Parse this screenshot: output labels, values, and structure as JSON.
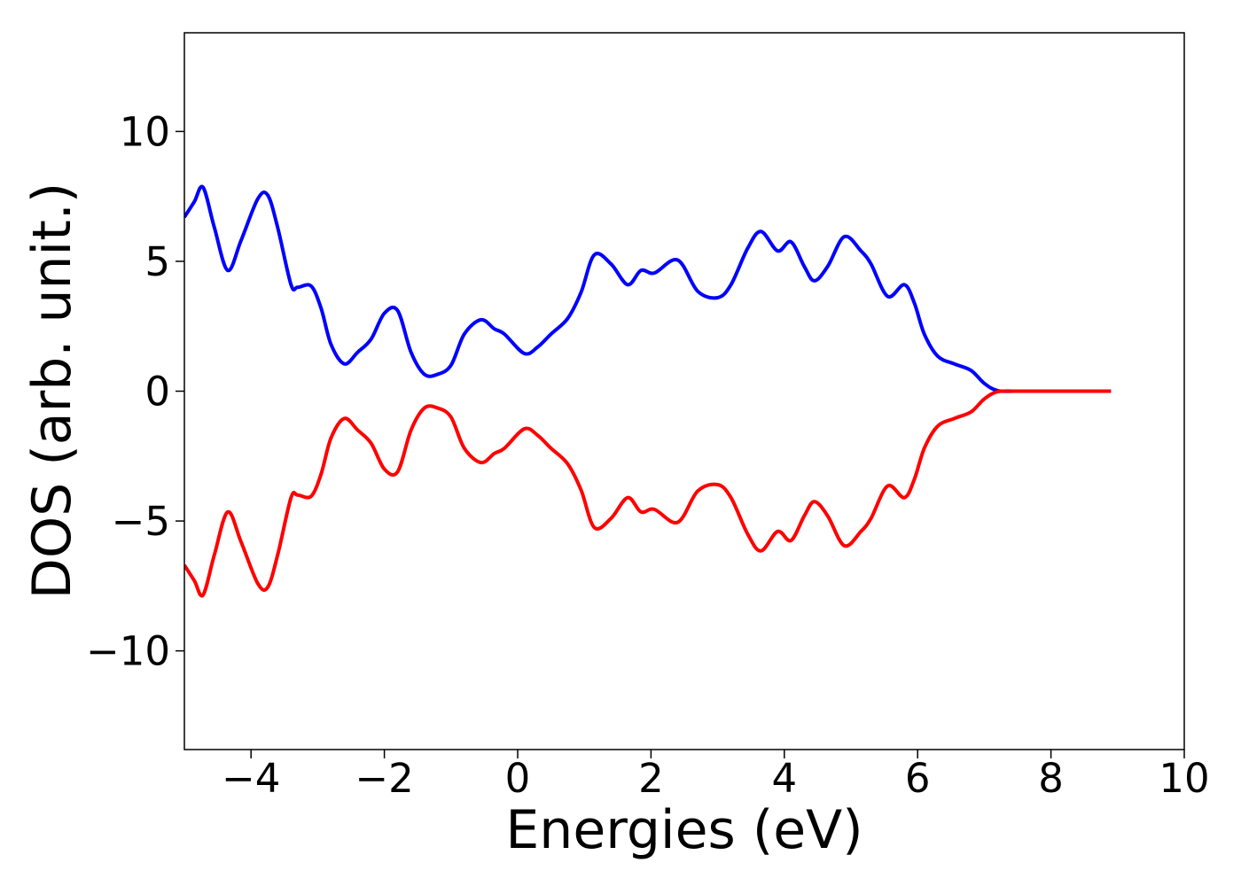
{
  "chart_data": {
    "type": "line",
    "title": "",
    "xlabel": "Energies (eV)",
    "ylabel": "DOS (arb. unit.)",
    "xlim": [
      -5,
      10
    ],
    "ylim": [
      -13.8,
      13.8
    ],
    "grid": false,
    "legend": "none",
    "x_ticks": [
      -4,
      -2,
      0,
      2,
      4,
      6,
      8,
      10
    ],
    "x_tick_labels": [
      "−4",
      "−2",
      "0",
      "2",
      "4",
      "6",
      "8",
      "10"
    ],
    "y_ticks": [
      10,
      5,
      0,
      -5,
      -10
    ],
    "y_tick_labels": [
      "10",
      "5",
      "0",
      "−5",
      "−10"
    ],
    "series": [
      {
        "color": "#0000ff",
        "x": [
          -5.0,
          -4.85,
          -4.72,
          -4.55,
          -4.35,
          -4.15,
          -3.9,
          -3.75,
          -3.6,
          -3.4,
          -3.3,
          -3.1,
          -2.95,
          -2.8,
          -2.6,
          -2.4,
          -2.2,
          -2.0,
          -1.8,
          -1.6,
          -1.4,
          -1.2,
          -1.0,
          -0.8,
          -0.55,
          -0.35,
          -0.2,
          0.1,
          0.3,
          0.5,
          0.75,
          0.95,
          1.15,
          1.4,
          1.65,
          1.85,
          2.05,
          2.4,
          2.7,
          3.0,
          3.2,
          3.45,
          3.65,
          3.9,
          4.1,
          4.3,
          4.45,
          4.65,
          4.9,
          5.15,
          5.3,
          5.55,
          5.8,
          5.95,
          6.1,
          6.3,
          6.55,
          6.8,
          7.0,
          7.2,
          7.5,
          8.0,
          8.9
        ],
        "y": [
          6.7,
          7.3,
          7.85,
          6.3,
          4.65,
          5.8,
          7.4,
          7.55,
          6.3,
          4.1,
          4.0,
          4.05,
          3.2,
          1.8,
          1.05,
          1.5,
          2.0,
          3.0,
          3.1,
          1.5,
          0.65,
          0.65,
          1.0,
          2.2,
          2.75,
          2.4,
          2.2,
          1.45,
          1.7,
          2.2,
          2.8,
          3.8,
          5.25,
          4.9,
          4.1,
          4.65,
          4.55,
          5.05,
          3.85,
          3.6,
          4.1,
          5.5,
          6.15,
          5.4,
          5.75,
          4.8,
          4.25,
          4.8,
          5.95,
          5.4,
          4.9,
          3.65,
          4.1,
          3.4,
          2.2,
          1.35,
          1.05,
          0.8,
          0.3,
          0.02,
          0.0,
          0.0,
          0.0
        ]
      },
      {
        "color": "#ff0000",
        "x": [
          -5.0,
          -4.85,
          -4.72,
          -4.55,
          -4.35,
          -4.15,
          -3.9,
          -3.75,
          -3.6,
          -3.4,
          -3.3,
          -3.1,
          -2.95,
          -2.8,
          -2.6,
          -2.4,
          -2.2,
          -2.0,
          -1.8,
          -1.6,
          -1.4,
          -1.2,
          -1.0,
          -0.8,
          -0.55,
          -0.35,
          -0.2,
          0.1,
          0.3,
          0.5,
          0.75,
          0.95,
          1.15,
          1.4,
          1.65,
          1.85,
          2.05,
          2.4,
          2.7,
          3.0,
          3.2,
          3.45,
          3.65,
          3.9,
          4.1,
          4.3,
          4.45,
          4.65,
          4.9,
          5.15,
          5.3,
          5.55,
          5.8,
          5.95,
          6.1,
          6.3,
          6.55,
          6.8,
          7.0,
          7.2,
          7.5,
          8.0,
          8.9
        ],
        "y": [
          -6.7,
          -7.3,
          -7.85,
          -6.3,
          -4.65,
          -5.8,
          -7.4,
          -7.55,
          -6.3,
          -4.1,
          -4.0,
          -4.05,
          -3.2,
          -1.8,
          -1.05,
          -1.5,
          -2.0,
          -3.0,
          -3.1,
          -1.5,
          -0.65,
          -0.65,
          -1.0,
          -2.2,
          -2.75,
          -2.4,
          -2.2,
          -1.45,
          -1.7,
          -2.2,
          -2.8,
          -3.8,
          -5.25,
          -4.9,
          -4.1,
          -4.65,
          -4.55,
          -5.05,
          -3.85,
          -3.6,
          -4.1,
          -5.5,
          -6.15,
          -5.4,
          -5.75,
          -4.8,
          -4.25,
          -4.8,
          -5.95,
          -5.4,
          -4.9,
          -3.65,
          -4.1,
          -3.4,
          -2.2,
          -1.35,
          -1.05,
          -0.8,
          -0.3,
          -0.02,
          0.0,
          0.0,
          0.0
        ]
      }
    ]
  }
}
